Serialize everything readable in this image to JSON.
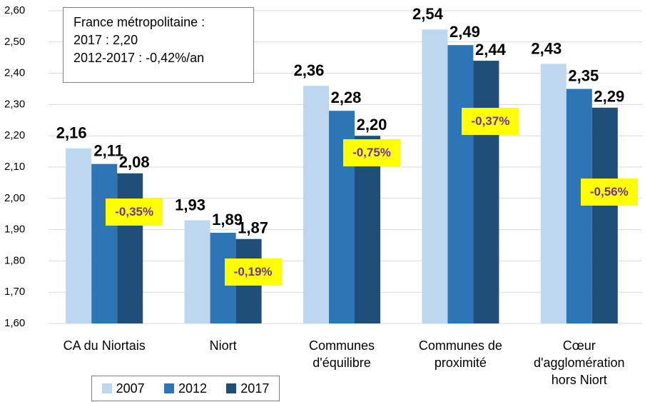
{
  "chart_data": {
    "type": "bar",
    "categories": [
      "CA du Niortais",
      "Niort",
      "Communes\nd'équilibre",
      "Communes de\nproximité",
      "Cœur\nd'agglomération\nhors Niort"
    ],
    "series": [
      {
        "name": "2007",
        "color": "#bdd7ee",
        "values": [
          2.16,
          1.93,
          2.36,
          2.54,
          2.43
        ],
        "value_labels": [
          "2,16",
          "1,93",
          "2,36",
          "2,54",
          "2,43"
        ]
      },
      {
        "name": "2012",
        "color": "#2e75b6",
        "values": [
          2.11,
          1.89,
          2.28,
          2.49,
          2.35
        ],
        "value_labels": [
          "2,11",
          "1,89",
          "2,28",
          "2,49",
          "2,35"
        ]
      },
      {
        "name": "2017",
        "color": "#1f4e79",
        "values": [
          2.08,
          1.87,
          2.2,
          2.44,
          2.29
        ],
        "value_labels": [
          "2,08",
          "1,87",
          "2,20",
          "2,44",
          "2,29"
        ]
      }
    ],
    "annotations": [
      "-0,35%",
      "-0,19%",
      "-0,75%",
      "-0,37%",
      "-0,56%"
    ],
    "info_box": [
      "France métropolitaine :",
      "2017 : 2,20",
      "2012-2017 : -0,42%/an"
    ],
    "ylim": [
      1.6,
      2.6
    ],
    "yticks": [
      {
        "value": 1.6,
        "label": "1,60"
      },
      {
        "value": 1.7,
        "label": "1,70"
      },
      {
        "value": 1.8,
        "label": "1,80"
      },
      {
        "value": 1.9,
        "label": "1,90"
      },
      {
        "value": 2.0,
        "label": "2,00"
      },
      {
        "value": 2.1,
        "label": "2,10"
      },
      {
        "value": 2.2,
        "label": "2,20"
      },
      {
        "value": 2.3,
        "label": "2,30"
      },
      {
        "value": 2.4,
        "label": "2,40"
      },
      {
        "value": 2.5,
        "label": "2,50"
      },
      {
        "value": 2.6,
        "label": "2,60"
      }
    ],
    "grid": true,
    "legend": "bottom"
  }
}
